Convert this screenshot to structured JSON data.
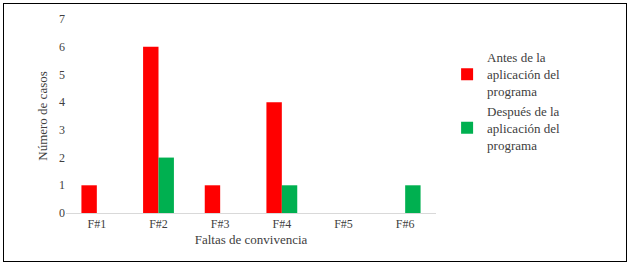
{
  "chart_data": {
    "type": "bar",
    "x_label": "Faltas de convivencia",
    "y_label": "Número de casos",
    "categories": [
      "F#1",
      "F#2",
      "F#3",
      "F#4",
      "F#5",
      "F#6"
    ],
    "series": [
      {
        "name": "Antes de la aplicación del programa",
        "color": "#ff0000",
        "values": [
          1,
          6,
          1,
          4,
          0,
          0
        ]
      },
      {
        "name": "Después de la aplicación del programa",
        "color": "#00b050",
        "values": [
          0,
          2,
          0,
          1,
          0,
          1
        ]
      }
    ],
    "ylim": [
      0,
      7
    ],
    "yticks": [
      0,
      1,
      2,
      3,
      4,
      5,
      6,
      7
    ],
    "grid": false,
    "legend": "right"
  }
}
